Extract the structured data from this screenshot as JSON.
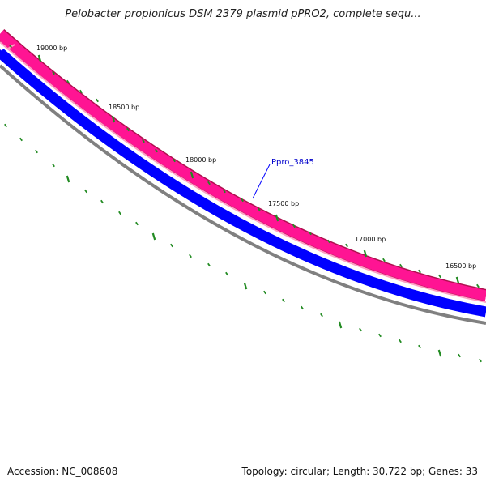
{
  "title": "Pelobacter propionicus DSM 2379 plasmid pPRO2, complete sequ...",
  "footer": {
    "accession": "Accession: NC_008608",
    "summary": "Topology: circular; Length: 30,722 bp; Genes: 33"
  },
  "map": {
    "topology": "circular",
    "length_bp": 30722,
    "gene_count": 33,
    "colors": {
      "ruler_tick": "#228B22",
      "outer_track": "#ff1493",
      "outer_track_edge": "#b0104f",
      "outer_track_inner": "#ff9ec4",
      "minus_track": "#0000ff",
      "backbone": "#808080",
      "label_line": "#0000ff"
    },
    "scale_labels": [
      "19000 bp",
      "18500 bp",
      "18000 bp",
      "17500 bp",
      "17000 bp",
      "16500 bp"
    ],
    "gene_labels": [
      {
        "name": "Ppro_3845"
      }
    ]
  }
}
